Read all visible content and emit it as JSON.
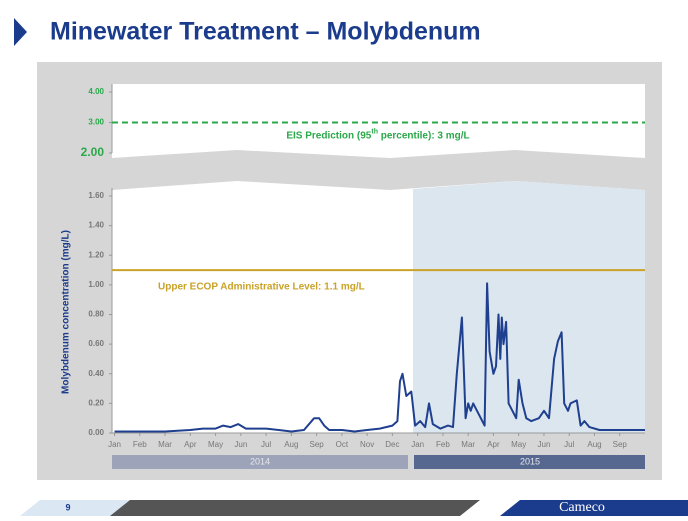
{
  "header": {
    "title": "Minewater Treatment – Molybdenum"
  },
  "chart_data": {
    "type": "line",
    "y_label": "Molybdenum concentration (mg/L)",
    "series": [
      {
        "name": "Molybdenum",
        "color": "#1f3f8f",
        "x": [
          0,
          1,
          2,
          3,
          3.5,
          4,
          4.3,
          4.6,
          4.9,
          5.2,
          5.6,
          6,
          6.5,
          7,
          7.5,
          7.9,
          8.1,
          8.3,
          8.5,
          9,
          9.5,
          10,
          10.5,
          11,
          11.2,
          11.3,
          11.4,
          11.55,
          11.75,
          11.9,
          12.1,
          12.3,
          12.45,
          12.6,
          12.9,
          13.2,
          13.4,
          13.55,
          13.75,
          13.9,
          14.0,
          14.1,
          14.2,
          14.35,
          14.5,
          14.65,
          14.75,
          14.85,
          15.0,
          15.1,
          15.2,
          15.27,
          15.33,
          15.4,
          15.5,
          15.6,
          15.75,
          15.9,
          16.0,
          16.15,
          16.3,
          16.5,
          16.8,
          17.0,
          17.2,
          17.4,
          17.55,
          17.7,
          17.8,
          17.95,
          18.05,
          18.3,
          18.45,
          18.6,
          18.8,
          19.2,
          20,
          21
        ],
        "values": [
          0.01,
          0.01,
          0.01,
          0.02,
          0.03,
          0.03,
          0.05,
          0.04,
          0.06,
          0.03,
          0.03,
          0.03,
          0.02,
          0.01,
          0.02,
          0.1,
          0.1,
          0.05,
          0.02,
          0.02,
          0.01,
          0.02,
          0.03,
          0.05,
          0.08,
          0.35,
          0.4,
          0.25,
          0.28,
          0.05,
          0.08,
          0.04,
          0.2,
          0.06,
          0.03,
          0.05,
          0.04,
          0.4,
          0.78,
          0.1,
          0.2,
          0.15,
          0.2,
          0.15,
          0.1,
          0.05,
          1.01,
          0.55,
          0.4,
          0.45,
          0.8,
          0.5,
          0.78,
          0.6,
          0.75,
          0.2,
          0.15,
          0.1,
          0.36,
          0.2,
          0.1,
          0.08,
          0.1,
          0.15,
          0.1,
          0.5,
          0.62,
          0.68,
          0.2,
          0.15,
          0.2,
          0.22,
          0.05,
          0.08,
          0.04,
          0.02,
          0.02,
          0.02
        ]
      }
    ],
    "xlim": [
      -0.1,
      21
    ],
    "xticks": [
      {
        "value": 0,
        "label": "Jan"
      },
      {
        "value": 1,
        "label": "Feb"
      },
      {
        "value": 2,
        "label": "Mar"
      },
      {
        "value": 3,
        "label": "Apr"
      },
      {
        "value": 4,
        "label": "May"
      },
      {
        "value": 5,
        "label": "Jun"
      },
      {
        "value": 6,
        "label": "Jul"
      },
      {
        "value": 7,
        "label": "Aug"
      },
      {
        "value": 8,
        "label": "Sep"
      },
      {
        "value": 9,
        "label": "Oct"
      },
      {
        "value": 10,
        "label": "Nov"
      },
      {
        "value": 11,
        "label": "Dec"
      },
      {
        "value": 12,
        "label": "Jan"
      },
      {
        "value": 13,
        "label": "Feb"
      },
      {
        "value": 14,
        "label": "Mar"
      },
      {
        "value": 15,
        "label": "Apr"
      },
      {
        "value": 16,
        "label": "May"
      },
      {
        "value": 17,
        "label": "Jun"
      },
      {
        "value": 18,
        "label": "Jul"
      },
      {
        "value": 19,
        "label": "Aug"
      },
      {
        "value": 20,
        "label": "Sep"
      }
    ],
    "ylim": [
      0,
      1.6
    ],
    "yticks": [
      {
        "value": 0,
        "label": "0.00"
      },
      {
        "value": 0.2,
        "label": "0.20"
      },
      {
        "value": 0.4,
        "label": "0.40"
      },
      {
        "value": 0.6,
        "label": "0.60"
      },
      {
        "value": 0.8,
        "label": "0.80"
      },
      {
        "value": 1,
        "label": "1.00"
      },
      {
        "value": 1.2,
        "label": "1.20"
      },
      {
        "value": 1.4,
        "label": "1.40"
      },
      {
        "value": 1.6,
        "label": "1.60"
      }
    ],
    "upper_ylim": [
      2,
      4
    ],
    "upper_yticks": [
      {
        "value": 2,
        "label": "2.00"
      },
      {
        "value": 3,
        "label": "3.00"
      },
      {
        "value": 4,
        "label": "4.00"
      }
    ],
    "years": [
      "2014",
      "2015"
    ],
    "ecop": {
      "value": 1.1,
      "color": "#c9a227",
      "label": "Upper ECOP Administrative Level: 1.1 mg/L"
    },
    "eis": {
      "value": 3,
      "color": "#2aa84a",
      "label_start": "EIS Prediction (95",
      "label_sup": "th",
      "label_end": " percentile): 3 mg/L"
    }
  },
  "footer": {
    "page": "9",
    "logo": "Cameco"
  }
}
